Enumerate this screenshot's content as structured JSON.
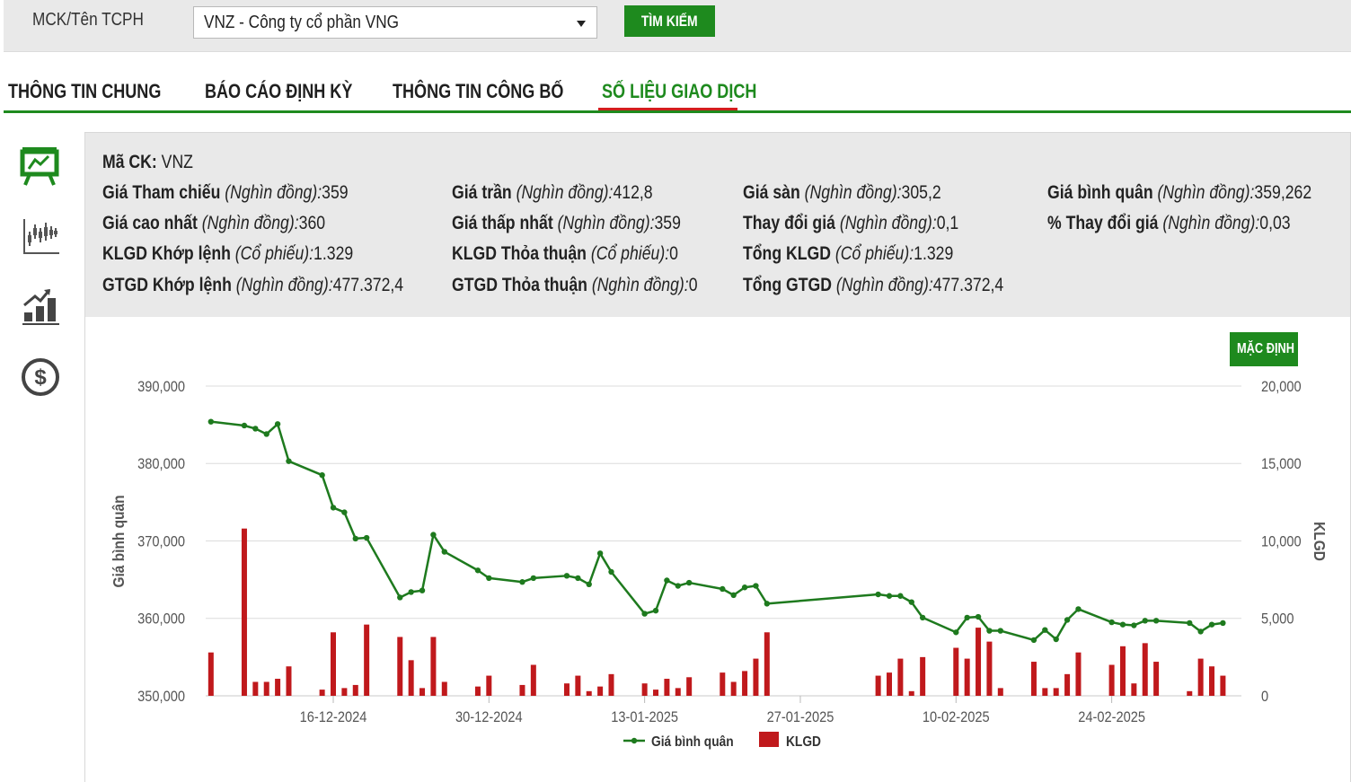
{
  "search": {
    "label": "MCK/Tên TCPH",
    "selected": "VNZ - Công ty cổ phần VNG",
    "button": "TÌM KIẾM"
  },
  "tabs": [
    {
      "label": "THÔNG TIN CHUNG"
    },
    {
      "label": "BÁO CÁO ĐỊNH KỲ"
    },
    {
      "label": "THÔNG TIN CÔNG BỐ"
    },
    {
      "label": "SỐ LIỆU GIAO DỊCH",
      "active": true
    }
  ],
  "sidebar_icons": [
    "presentation-icon",
    "candlestick-chart-icon",
    "growth-chart-icon",
    "dollar-icon"
  ],
  "info": {
    "ma_ck": {
      "label": "Mã CK:",
      "value": "VNZ"
    },
    "rows": [
      [
        {
          "label": "Giá Tham chiếu",
          "unit": "(Nghìn đồng):",
          "value": "359"
        },
        {
          "label": "Giá trần",
          "unit": "(Nghìn đồng):",
          "value": "412,8"
        },
        {
          "label": "Giá sàn",
          "unit": "(Nghìn đồng):",
          "value": "305,2"
        },
        {
          "label": "Giá bình quân",
          "unit": "(Nghìn đồng):",
          "value": "359,262"
        }
      ],
      [
        {
          "label": "Giá cao nhất",
          "unit": "(Nghìn đồng):",
          "value": "360"
        },
        {
          "label": "Giá thấp nhất",
          "unit": "(Nghìn đồng):",
          "value": "359"
        },
        {
          "label": "Thay đổi giá",
          "unit": "(Nghìn đồng):",
          "value": "0,1"
        },
        {
          "label": "% Thay đổi giá",
          "unit": "(Nghìn đồng):",
          "value": "0,03"
        }
      ],
      [
        {
          "label": "KLGD Khớp lệnh",
          "unit": "(Cổ phiếu):",
          "value": "1.329"
        },
        {
          "label": "KLGD Thỏa thuận",
          "unit": "(Cổ phiếu):",
          "value": "0"
        },
        {
          "label": "Tổng KLGD",
          "unit": "(Cổ phiếu):",
          "value": "1.329"
        }
      ],
      [
        {
          "label": "GTGD Khớp lệnh",
          "unit": "(Nghìn đồng):",
          "value": "477.372,4"
        },
        {
          "label": "GTGD Thỏa thuận",
          "unit": "(Nghìn đồng):",
          "value": "0"
        },
        {
          "label": "Tổng GTGD",
          "unit": "(Nghìn đồng):",
          "value": "477.372,4"
        }
      ]
    ]
  },
  "default_button": "MẶC ĐỊNH",
  "colors": {
    "green": "#1e8a1e",
    "red": "#c0191c",
    "active_tab_underline": "#d31e1e"
  },
  "chart_data": {
    "type": "line+bar",
    "x_ticks": [
      "16-12-2024",
      "30-12-2024",
      "13-01-2025",
      "27-01-2025",
      "10-02-2025",
      "24-02-2025"
    ],
    "x_tick_dates": [
      "2024-12-16",
      "2024-12-30",
      "2025-01-13",
      "2025-01-27",
      "2025-02-10",
      "2025-02-24"
    ],
    "y_left": {
      "label": "Giá bình quân",
      "ticks": [
        "350,000",
        "360,000",
        "370,000",
        "380,000",
        "390,000"
      ],
      "range": [
        350000,
        390000
      ]
    },
    "y_right": {
      "label": "KLGD",
      "ticks": [
        "0",
        "5,000",
        "10,000",
        "15,000",
        "20,000"
      ],
      "range": [
        0,
        20000
      ]
    },
    "grid": true,
    "legend": {
      "position": "bottom",
      "items": [
        {
          "name": "Giá bình quân",
          "color": "#1e7a1e"
        },
        {
          "name": "KLGD",
          "color": "#c0191c"
        }
      ]
    },
    "series": [
      {
        "name": "Giá bình quân",
        "type": "line",
        "axis": "left",
        "points": [
          [
            "2024-12-05",
            385400
          ],
          [
            "2024-12-08",
            384900
          ],
          [
            "2024-12-09",
            384500
          ],
          [
            "2024-12-10",
            383800
          ],
          [
            "2024-12-11",
            385100
          ],
          [
            "2024-12-12",
            380300
          ],
          [
            "2024-12-15",
            378500
          ],
          [
            "2024-12-16",
            374300
          ],
          [
            "2024-12-17",
            373700
          ],
          [
            "2024-12-18",
            370300
          ],
          [
            "2024-12-19",
            370400
          ],
          [
            "2024-12-22",
            362700
          ],
          [
            "2024-12-23",
            363400
          ],
          [
            "2024-12-24",
            363600
          ],
          [
            "2024-12-25",
            370800
          ],
          [
            "2024-12-26",
            368600
          ],
          [
            "2024-12-29",
            366200
          ],
          [
            "2024-12-30",
            365200
          ],
          [
            "2025-01-02",
            364700
          ],
          [
            "2025-01-03",
            365200
          ],
          [
            "2025-01-06",
            365500
          ],
          [
            "2025-01-07",
            365200
          ],
          [
            "2025-01-08",
            364400
          ],
          [
            "2025-01-09",
            368400
          ],
          [
            "2025-01-10",
            366000
          ],
          [
            "2025-01-13",
            360600
          ],
          [
            "2025-01-14",
            361000
          ],
          [
            "2025-01-15",
            364900
          ],
          [
            "2025-01-16",
            364200
          ],
          [
            "2025-01-17",
            364600
          ],
          [
            "2025-01-20",
            363800
          ],
          [
            "2025-01-21",
            363000
          ],
          [
            "2025-01-22",
            364000
          ],
          [
            "2025-01-23",
            364200
          ],
          [
            "2025-01-24",
            361900
          ],
          [
            "2025-02-03",
            363100
          ],
          [
            "2025-02-04",
            362900
          ],
          [
            "2025-02-05",
            362900
          ],
          [
            "2025-02-06",
            362100
          ],
          [
            "2025-02-07",
            360100
          ],
          [
            "2025-02-10",
            358200
          ],
          [
            "2025-02-11",
            360100
          ],
          [
            "2025-02-12",
            360200
          ],
          [
            "2025-02-13",
            358400
          ],
          [
            "2025-02-14",
            358400
          ],
          [
            "2025-02-17",
            357200
          ],
          [
            "2025-02-18",
            358500
          ],
          [
            "2025-02-19",
            357300
          ],
          [
            "2025-02-20",
            359800
          ],
          [
            "2025-02-21",
            361200
          ],
          [
            "2025-02-24",
            359500
          ],
          [
            "2025-02-25",
            359200
          ],
          [
            "2025-02-26",
            359100
          ],
          [
            "2025-02-27",
            359700
          ],
          [
            "2025-02-28",
            359700
          ],
          [
            "2025-03-03",
            359400
          ],
          [
            "2025-03-04",
            358300
          ],
          [
            "2025-03-05",
            359200
          ],
          [
            "2025-03-06",
            359400
          ]
        ]
      },
      {
        "name": "KLGD",
        "type": "bar",
        "axis": "right",
        "points": [
          [
            "2024-12-05",
            2800
          ],
          [
            "2024-12-08",
            10800
          ],
          [
            "2024-12-09",
            900
          ],
          [
            "2024-12-10",
            900
          ],
          [
            "2024-12-11",
            1100
          ],
          [
            "2024-12-12",
            1900
          ],
          [
            "2024-12-15",
            400
          ],
          [
            "2024-12-16",
            4100
          ],
          [
            "2024-12-17",
            500
          ],
          [
            "2024-12-18",
            700
          ],
          [
            "2024-12-19",
            4600
          ],
          [
            "2024-12-22",
            3800
          ],
          [
            "2024-12-23",
            2300
          ],
          [
            "2024-12-24",
            500
          ],
          [
            "2024-12-25",
            3800
          ],
          [
            "2024-12-26",
            900
          ],
          [
            "2024-12-29",
            600
          ],
          [
            "2024-12-30",
            1300
          ],
          [
            "2025-01-02",
            700
          ],
          [
            "2025-01-03",
            2000
          ],
          [
            "2025-01-06",
            800
          ],
          [
            "2025-01-07",
            1300
          ],
          [
            "2025-01-08",
            300
          ],
          [
            "2025-01-09",
            600
          ],
          [
            "2025-01-10",
            1400
          ],
          [
            "2025-01-13",
            800
          ],
          [
            "2025-01-14",
            400
          ],
          [
            "2025-01-15",
            1100
          ],
          [
            "2025-01-16",
            500
          ],
          [
            "2025-01-17",
            1200
          ],
          [
            "2025-01-20",
            1500
          ],
          [
            "2025-01-21",
            900
          ],
          [
            "2025-01-22",
            1600
          ],
          [
            "2025-01-23",
            2400
          ],
          [
            "2025-01-24",
            4100
          ],
          [
            "2025-02-03",
            1300
          ],
          [
            "2025-02-04",
            1500
          ],
          [
            "2025-02-05",
            2400
          ],
          [
            "2025-02-06",
            300
          ],
          [
            "2025-02-07",
            2500
          ],
          [
            "2025-02-10",
            3100
          ],
          [
            "2025-02-11",
            2400
          ],
          [
            "2025-02-12",
            4400
          ],
          [
            "2025-02-13",
            3500
          ],
          [
            "2025-02-14",
            500
          ],
          [
            "2025-02-17",
            2200
          ],
          [
            "2025-02-18",
            500
          ],
          [
            "2025-02-19",
            500
          ],
          [
            "2025-02-20",
            1400
          ],
          [
            "2025-02-21",
            2800
          ],
          [
            "2025-02-24",
            2000
          ],
          [
            "2025-02-25",
            3200
          ],
          [
            "2025-02-26",
            800
          ],
          [
            "2025-02-27",
            3400
          ],
          [
            "2025-02-28",
            2200
          ],
          [
            "2025-03-03",
            300
          ],
          [
            "2025-03-04",
            2400
          ],
          [
            "2025-03-05",
            1900
          ],
          [
            "2025-03-06",
            1300
          ]
        ]
      }
    ]
  }
}
